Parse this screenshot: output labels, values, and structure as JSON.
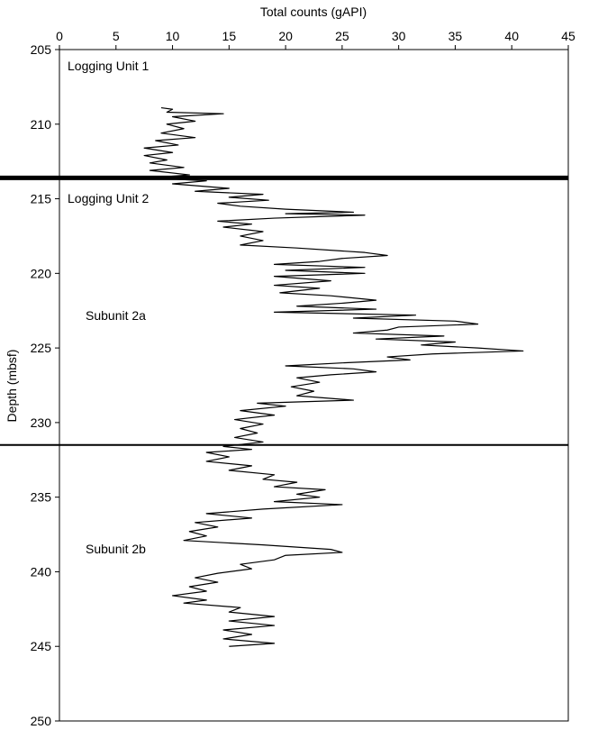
{
  "chart_data": {
    "type": "line",
    "xlabel": "Total counts (gAPI)",
    "ylabel": "Depth (mbsf)",
    "xlim": [
      0,
      45
    ],
    "xticks": [
      0,
      5,
      10,
      15,
      20,
      25,
      30,
      35,
      40,
      45
    ],
    "ylim": [
      205,
      250
    ],
    "yticks": [
      205,
      210,
      215,
      220,
      225,
      230,
      235,
      240,
      245,
      250
    ],
    "y_inverted": true,
    "boundaries": [
      213.6,
      231.5
    ],
    "annotations": [
      "Logging Unit 1",
      "Logging Unit 2",
      "Subunit 2a",
      "Subunit 2b"
    ],
    "depth": [
      208.9,
      209.0,
      209.2,
      209.3,
      209.5,
      209.8,
      210.0,
      210.3,
      210.6,
      210.9,
      211.1,
      211.4,
      211.6,
      211.9,
      212.1,
      212.4,
      212.6,
      212.9,
      213.1,
      213.4,
      213.6,
      213.8,
      214.0,
      214.3,
      214.5,
      214.7,
      214.9,
      215.1,
      215.3,
      215.5,
      215.7,
      215.9,
      216.0,
      216.1,
      216.3,
      216.5,
      216.7,
      216.9,
      217.2,
      217.5,
      217.8,
      218.1,
      218.3,
      218.6,
      218.8,
      219.0,
      219.2,
      219.4,
      219.6,
      219.8,
      220.0,
      220.2,
      220.5,
      220.8,
      221.0,
      221.3,
      221.5,
      221.8,
      222.0,
      222.2,
      222.4,
      222.6,
      222.8,
      223.0,
      223.2,
      223.4,
      223.6,
      223.8,
      224.0,
      224.2,
      224.4,
      224.6,
      224.8,
      225.0,
      225.2,
      225.4,
      225.6,
      225.8,
      226.0,
      226.2,
      226.4,
      226.6,
      226.8,
      227.0,
      227.3,
      227.6,
      227.9,
      228.2,
      228.5,
      228.7,
      228.9,
      229.2,
      229.5,
      229.8,
      230.1,
      230.4,
      230.7,
      231.0,
      231.3,
      231.6,
      231.8,
      232.0,
      232.3,
      232.6,
      232.9,
      233.2,
      233.5,
      233.8,
      234.0,
      234.3,
      234.5,
      234.8,
      235.0,
      235.3,
      235.5,
      235.8,
      236.1,
      236.4,
      236.7,
      237.0,
      237.3,
      237.6,
      237.9,
      238.2,
      238.5,
      238.7,
      238.9,
      239.2,
      239.5,
      239.8,
      240.1,
      240.4,
      240.7,
      241.0,
      241.3,
      241.6,
      241.9,
      242.1,
      242.4,
      242.7,
      243.0,
      243.3,
      243.6,
      243.9,
      244.2,
      244.5,
      244.8,
      245.0
    ],
    "series": [
      {
        "color": "#000000",
        "values": [
          9,
          10,
          9.5,
          14.5,
          10,
          12,
          9.5,
          11,
          9,
          12,
          8.5,
          10.5,
          7.5,
          10,
          7.5,
          9.5,
          8,
          11,
          8,
          11.5,
          8,
          13,
          10,
          15,
          12,
          18,
          15,
          18.5,
          14,
          16,
          20,
          26,
          20,
          27,
          19,
          14,
          17,
          14.5,
          18,
          16,
          18,
          16,
          21,
          27,
          29,
          25,
          23,
          19,
          27,
          20,
          27,
          19,
          24,
          19,
          23,
          19.5,
          24,
          28,
          25,
          21,
          28,
          19,
          31.5,
          26,
          35,
          37,
          30,
          29,
          26,
          34,
          28,
          35,
          32,
          37,
          41,
          33,
          29,
          31,
          25,
          20,
          26,
          28,
          24,
          21,
          23,
          20.5,
          22.5,
          21,
          26,
          17.5,
          20,
          16,
          19,
          15.5,
          18,
          16,
          17.5,
          15.5,
          18,
          14.5,
          17,
          13,
          15,
          13,
          17,
          15,
          19,
          18,
          21,
          19,
          23.5,
          21,
          23,
          19,
          25,
          18,
          13,
          17,
          12,
          14,
          11.5,
          13,
          11,
          18,
          24,
          25,
          20,
          19,
          16,
          17,
          14,
          12,
          14,
          11.5,
          13,
          10,
          13,
          11,
          16,
          15,
          19,
          15,
          19,
          14.5,
          17,
          14.5,
          19,
          15
        ]
      }
    ]
  }
}
